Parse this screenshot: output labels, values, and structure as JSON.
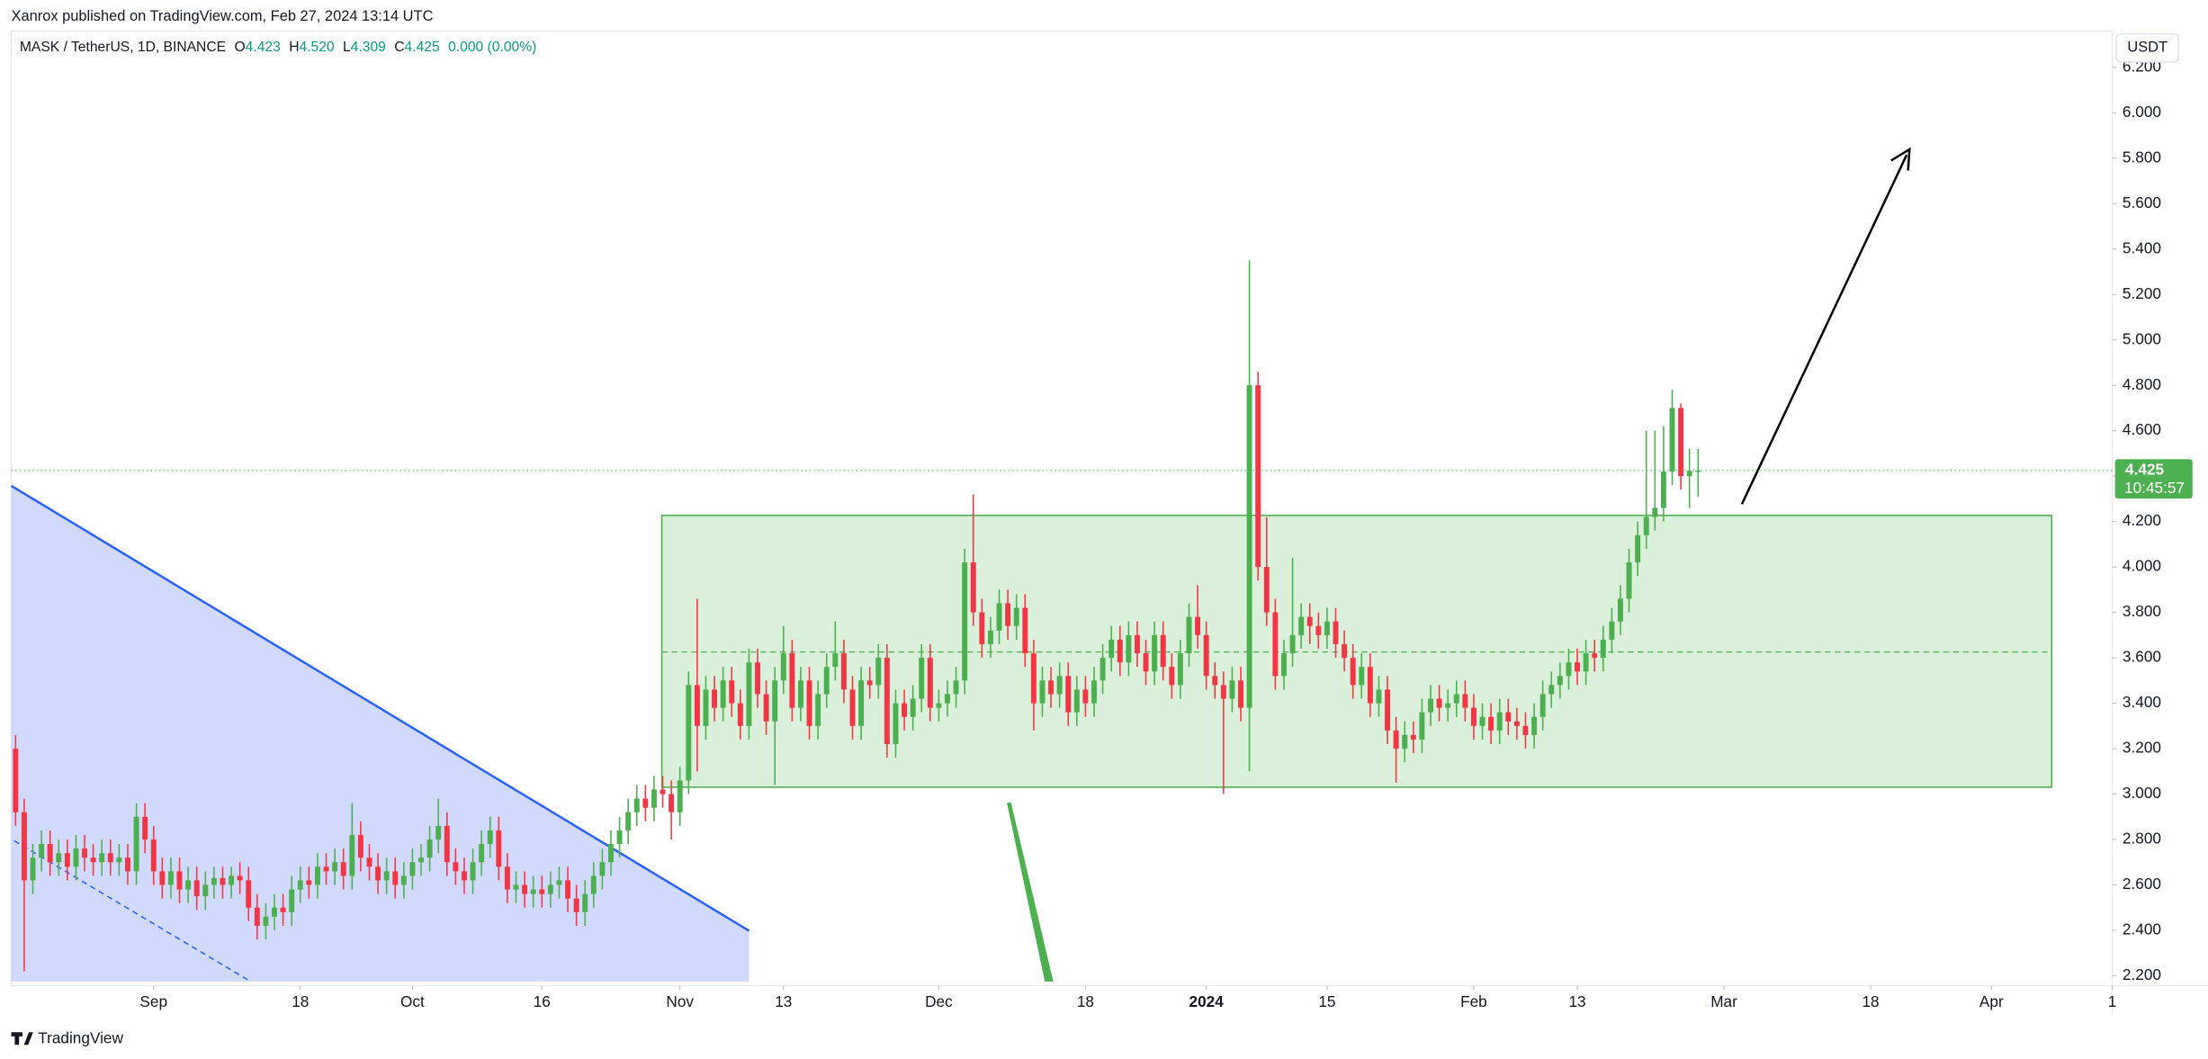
{
  "header": {
    "published": "Xanrox published on TradingView.com, Feb 27, 2024 13:14 UTC",
    "symbol": "MASK / TetherUS, 1D, BINANCE",
    "legend": [
      "O",
      "4.423",
      "H",
      "4.520",
      "L",
      "4.309",
      "C",
      "4.425",
      "0.000 (0.00%)"
    ]
  },
  "footer": {
    "brand": "TradingView"
  },
  "chart_data": {
    "type": "candlestick",
    "currency": "USDT",
    "price_label": "4.425",
    "countdown": "10:45:57",
    "up_color": "#4caf50",
    "down_color": "#f23645",
    "grid": false,
    "open": [
      3.2,
      2.92,
      2.62,
      2.72,
      2.78,
      2.7,
      2.74,
      2.68,
      2.76,
      2.72,
      2.7,
      2.74,
      2.7,
      2.72,
      2.66,
      2.9,
      2.8,
      2.66,
      2.6,
      2.66,
      2.58,
      2.62,
      2.55,
      2.6,
      2.63,
      2.6,
      2.64,
      2.62,
      2.5,
      2.42,
      2.46,
      2.5,
      2.48,
      2.58,
      2.62,
      2.6,
      2.68,
      2.66,
      2.7,
      2.64,
      2.82,
      2.72,
      2.68,
      2.62,
      2.66,
      2.6,
      2.64,
      2.7,
      2.72,
      2.8,
      2.86,
      2.7,
      2.66,
      2.62,
      2.7,
      2.78,
      2.84,
      2.68,
      2.58,
      2.6,
      2.56,
      2.58,
      2.56,
      2.6,
      2.62,
      2.54,
      2.48,
      2.56,
      2.64,
      2.7,
      2.78,
      2.84,
      2.92,
      2.98,
      2.94,
      3.02,
      3.0,
      2.92,
      3.06,
      3.48,
      3.3,
      3.46,
      3.38,
      3.5,
      3.4,
      3.3,
      3.58,
      3.44,
      3.32,
      3.5,
      3.62,
      3.38,
      3.5,
      3.3,
      3.44,
      3.56,
      3.62,
      3.46,
      3.3,
      3.5,
      3.48,
      3.6,
      3.22,
      3.4,
      3.34,
      3.42,
      3.6,
      3.38,
      3.4,
      3.44,
      3.5,
      4.02,
      3.8,
      3.66,
      3.72,
      3.84,
      3.74,
      3.82,
      3.62,
      3.4,
      3.5,
      3.44,
      3.52,
      3.36,
      3.46,
      3.4,
      3.5,
      3.6,
      3.68,
      3.58,
      3.7,
      3.62,
      3.54,
      3.7,
      3.56,
      3.48,
      3.62,
      3.78,
      3.7,
      3.52,
      3.48,
      3.42,
      3.5,
      3.38,
      4.8,
      4.0,
      3.8,
      3.52,
      3.62,
      3.7,
      3.78,
      3.74,
      3.7,
      3.76,
      3.66,
      3.6,
      3.48,
      3.56,
      3.4,
      3.46,
      3.28,
      3.2,
      3.26,
      3.24,
      3.36,
      3.42,
      3.38,
      3.4,
      3.44,
      3.38,
      3.3,
      3.34,
      3.28,
      3.36,
      3.32,
      3.3,
      3.26,
      3.34,
      3.44,
      3.48,
      3.52,
      3.58,
      3.54,
      3.62,
      3.6,
      3.68,
      3.76,
      3.86,
      4.02,
      4.14,
      4.22,
      4.26,
      4.42,
      4.7,
      4.4,
      4.423
    ],
    "high": [
      3.26,
      2.98,
      2.78,
      2.84,
      2.84,
      2.8,
      2.8,
      2.82,
      2.82,
      2.78,
      2.8,
      2.8,
      2.78,
      2.78,
      2.96,
      2.96,
      2.86,
      2.72,
      2.72,
      2.72,
      2.68,
      2.68,
      2.66,
      2.68,
      2.68,
      2.68,
      2.7,
      2.68,
      2.56,
      2.52,
      2.56,
      2.56,
      2.64,
      2.68,
      2.68,
      2.74,
      2.74,
      2.76,
      2.76,
      2.96,
      2.88,
      2.78,
      2.74,
      2.72,
      2.72,
      2.7,
      2.76,
      2.78,
      2.86,
      2.98,
      2.92,
      2.76,
      2.72,
      2.76,
      2.84,
      2.9,
      2.9,
      2.74,
      2.66,
      2.66,
      2.64,
      2.64,
      2.66,
      2.68,
      2.68,
      2.6,
      2.62,
      2.7,
      2.76,
      2.84,
      2.9,
      2.98,
      3.04,
      3.04,
      3.08,
      3.08,
      3.06,
      3.12,
      3.54,
      3.86,
      3.52,
      3.52,
      3.56,
      3.56,
      3.46,
      3.64,
      3.64,
      3.5,
      3.56,
      3.74,
      3.68,
      3.56,
      3.56,
      3.5,
      3.62,
      3.76,
      3.68,
      3.52,
      3.56,
      3.56,
      3.66,
      3.66,
      3.46,
      3.46,
      3.48,
      3.66,
      3.66,
      3.46,
      3.5,
      3.56,
      4.08,
      4.32,
      3.86,
      3.78,
      3.9,
      3.9,
      3.88,
      3.88,
      3.68,
      3.56,
      3.56,
      3.58,
      3.58,
      3.52,
      3.52,
      3.56,
      3.66,
      3.74,
      3.74,
      3.76,
      3.76,
      3.68,
      3.76,
      3.76,
      3.62,
      3.68,
      3.84,
      3.92,
      3.76,
      3.58,
      3.54,
      3.56,
      3.56,
      5.35,
      4.86,
      4.22,
      3.86,
      3.68,
      4.04,
      3.84,
      3.84,
      3.8,
      3.82,
      3.82,
      3.72,
      3.66,
      3.62,
      3.62,
      3.52,
      3.52,
      3.34,
      3.32,
      3.32,
      3.42,
      3.48,
      3.48,
      3.46,
      3.5,
      3.5,
      3.44,
      3.4,
      3.4,
      3.42,
      3.42,
      3.38,
      3.36,
      3.4,
      3.5,
      3.54,
      3.58,
      3.64,
      3.64,
      3.68,
      3.68,
      3.74,
      3.82,
      3.92,
      4.08,
      4.2,
      4.6,
      4.6,
      4.62,
      4.78,
      4.72,
      4.52,
      4.52
    ],
    "low": [
      2.86,
      2.22,
      2.56,
      2.66,
      2.64,
      2.64,
      2.62,
      2.62,
      2.66,
      2.64,
      2.64,
      2.64,
      2.64,
      2.6,
      2.6,
      2.74,
      2.6,
      2.54,
      2.54,
      2.52,
      2.52,
      2.49,
      2.49,
      2.54,
      2.54,
      2.54,
      2.56,
      2.44,
      2.36,
      2.36,
      2.4,
      2.42,
      2.42,
      2.52,
      2.54,
      2.54,
      2.6,
      2.6,
      2.58,
      2.58,
      2.66,
      2.62,
      2.56,
      2.56,
      2.54,
      2.54,
      2.58,
      2.64,
      2.66,
      2.74,
      2.64,
      2.6,
      2.56,
      2.56,
      2.64,
      2.72,
      2.62,
      2.52,
      2.52,
      2.5,
      2.5,
      2.5,
      2.5,
      2.54,
      2.48,
      2.42,
      2.42,
      2.5,
      2.58,
      2.64,
      2.72,
      2.78,
      2.86,
      2.88,
      2.88,
      2.94,
      2.8,
      2.86,
      3.0,
      3.1,
      3.24,
      3.32,
      3.32,
      3.34,
      3.24,
      3.24,
      3.38,
      3.26,
      3.04,
      3.44,
      3.32,
      3.32,
      3.24,
      3.24,
      3.38,
      3.5,
      3.4,
      3.24,
      3.24,
      3.42,
      3.42,
      3.16,
      3.16,
      3.28,
      3.28,
      3.36,
      3.32,
      3.32,
      3.34,
      3.38,
      3.44,
      3.74,
      3.6,
      3.6,
      3.66,
      3.68,
      3.68,
      3.56,
      3.28,
      3.34,
      3.38,
      3.38,
      3.3,
      3.3,
      3.34,
      3.34,
      3.44,
      3.54,
      3.52,
      3.52,
      3.56,
      3.48,
      3.48,
      3.5,
      3.42,
      3.42,
      3.56,
      3.64,
      3.46,
      3.42,
      3.0,
      3.36,
      3.32,
      3.1,
      3.94,
      3.74,
      3.46,
      3.46,
      3.56,
      3.64,
      3.66,
      3.64,
      3.64,
      3.6,
      3.54,
      3.42,
      3.42,
      3.34,
      3.34,
      3.22,
      3.05,
      3.14,
      3.18,
      3.18,
      3.3,
      3.32,
      3.32,
      3.34,
      3.32,
      3.24,
      3.24,
      3.22,
      3.22,
      3.26,
      3.24,
      3.2,
      3.2,
      3.28,
      3.38,
      3.42,
      3.46,
      3.48,
      3.48,
      3.54,
      3.54,
      3.62,
      3.7,
      3.8,
      3.96,
      4.08,
      4.16,
      4.2,
      4.36,
      4.34,
      4.26,
      4.309
    ],
    "close": [
      2.92,
      2.62,
      2.72,
      2.78,
      2.7,
      2.74,
      2.68,
      2.76,
      2.72,
      2.7,
      2.74,
      2.7,
      2.72,
      2.66,
      2.9,
      2.8,
      2.66,
      2.6,
      2.66,
      2.58,
      2.62,
      2.55,
      2.6,
      2.63,
      2.6,
      2.64,
      2.62,
      2.5,
      2.42,
      2.46,
      2.5,
      2.48,
      2.58,
      2.62,
      2.6,
      2.68,
      2.66,
      2.7,
      2.64,
      2.82,
      2.72,
      2.68,
      2.62,
      2.66,
      2.6,
      2.64,
      2.7,
      2.72,
      2.8,
      2.86,
      2.7,
      2.66,
      2.62,
      2.7,
      2.78,
      2.84,
      2.68,
      2.58,
      2.6,
      2.56,
      2.58,
      2.56,
      2.6,
      2.62,
      2.54,
      2.48,
      2.56,
      2.64,
      2.7,
      2.78,
      2.84,
      2.92,
      2.98,
      2.94,
      3.02,
      3.0,
      2.92,
      3.06,
      3.48,
      3.3,
      3.46,
      3.38,
      3.5,
      3.4,
      3.3,
      3.58,
      3.44,
      3.32,
      3.5,
      3.62,
      3.38,
      3.5,
      3.3,
      3.44,
      3.56,
      3.62,
      3.46,
      3.3,
      3.5,
      3.48,
      3.6,
      3.22,
      3.4,
      3.34,
      3.42,
      3.6,
      3.38,
      3.4,
      3.44,
      3.5,
      4.02,
      3.8,
      3.66,
      3.72,
      3.84,
      3.74,
      3.82,
      3.62,
      3.4,
      3.5,
      3.44,
      3.52,
      3.36,
      3.46,
      3.4,
      3.5,
      3.6,
      3.68,
      3.58,
      3.7,
      3.62,
      3.54,
      3.7,
      3.56,
      3.48,
      3.62,
      3.78,
      3.7,
      3.52,
      3.48,
      3.42,
      3.5,
      3.38,
      4.8,
      4.0,
      3.8,
      3.52,
      3.62,
      3.7,
      3.78,
      3.74,
      3.7,
      3.76,
      3.66,
      3.6,
      3.48,
      3.56,
      3.4,
      3.46,
      3.28,
      3.2,
      3.26,
      3.24,
      3.36,
      3.42,
      3.38,
      3.4,
      3.44,
      3.38,
      3.3,
      3.34,
      3.28,
      3.36,
      3.32,
      3.3,
      3.26,
      3.34,
      3.44,
      3.48,
      3.52,
      3.58,
      3.54,
      3.62,
      3.6,
      3.68,
      3.76,
      3.86,
      4.02,
      4.14,
      4.22,
      4.26,
      4.42,
      4.7,
      4.4,
      4.423,
      4.425
    ],
    "xlim": [
      -0.5,
      243
    ],
    "xticks": [
      {
        "value": 16,
        "label": "Sep"
      },
      {
        "value": 33,
        "label": "18"
      },
      {
        "value": 46,
        "label": "Oct"
      },
      {
        "value": 61,
        "label": "16"
      },
      {
        "value": 77,
        "label": "Nov"
      },
      {
        "value": 89,
        "label": "13"
      },
      {
        "value": 107,
        "label": "Dec"
      },
      {
        "value": 124,
        "label": "18"
      },
      {
        "value": 138,
        "label": "2024"
      },
      {
        "value": 152,
        "label": "15"
      },
      {
        "value": 169,
        "label": "Feb"
      },
      {
        "value": 181,
        "label": "13"
      },
      {
        "value": 198,
        "label": "Mar"
      },
      {
        "value": 215,
        "label": "18"
      },
      {
        "value": 229,
        "label": "Apr"
      },
      {
        "value": 243,
        "label": "1"
      }
    ],
    "ylim": [
      2.156,
      6.36
    ],
    "yticks": [
      {
        "value": 2.2,
        "label": "2.200"
      },
      {
        "value": 2.4,
        "label": "2.400"
      },
      {
        "value": 2.6,
        "label": "2.600"
      },
      {
        "value": 2.8,
        "label": "2.800"
      },
      {
        "value": 3.0,
        "label": "3.000"
      },
      {
        "value": 3.2,
        "label": "3.200"
      },
      {
        "value": 3.4,
        "label": "3.400"
      },
      {
        "value": 3.6,
        "label": "3.600"
      },
      {
        "value": 3.8,
        "label": "3.800"
      },
      {
        "value": 4.0,
        "label": "4.000"
      },
      {
        "value": 4.2,
        "label": "4.200"
      },
      {
        "value": 4.4,
        "label": "4.400"
      },
      {
        "value": 4.6,
        "label": "4.600"
      },
      {
        "value": 4.8,
        "label": "4.800"
      },
      {
        "value": 5.0,
        "label": "5.000"
      },
      {
        "value": 5.2,
        "label": "5.200"
      },
      {
        "value": 5.4,
        "label": "5.400"
      },
      {
        "value": 5.6,
        "label": "5.600"
      },
      {
        "value": 5.8,
        "label": "5.800"
      },
      {
        "value": 6.0,
        "label": "6.000"
      },
      {
        "value": 6.2,
        "label": "6.200"
      }
    ]
  }
}
